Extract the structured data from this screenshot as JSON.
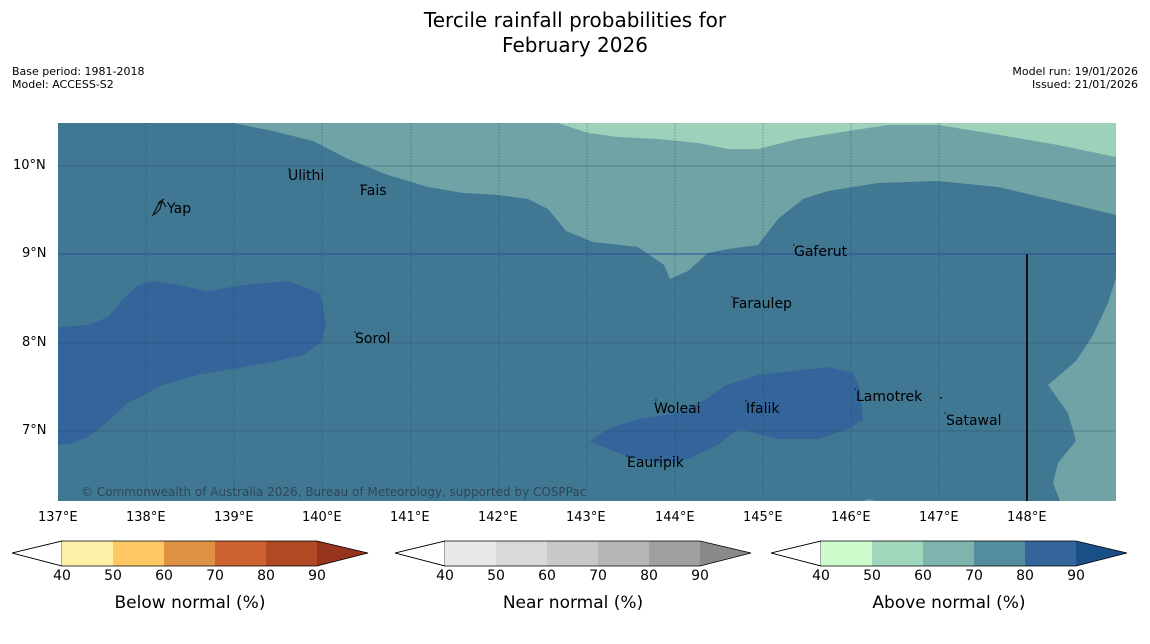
{
  "header": {
    "title_line1": "Tercile rainfall probabilities for",
    "title_line2": "February 2026",
    "base_period": "Base period: 1981-2018",
    "model": "Model: ACCESS-S2",
    "model_run": "Model run: 19/01/2026",
    "issued": "Issued: 21/01/2026"
  },
  "map": {
    "lat_labels": [
      "10°N",
      "9°N",
      "8°N",
      "7°N"
    ],
    "lon_labels": [
      "137°E",
      "138°E",
      "139°E",
      "140°E",
      "141°E",
      "142°E",
      "143°E",
      "144°E",
      "145°E",
      "146°E",
      "147°E",
      "148°E"
    ],
    "places": [
      "Ulithi",
      "Fais",
      "Yap",
      "Gaferut",
      "Faraulep",
      "Sorol",
      "Lamotrek",
      "Woleai",
      "Ifalik",
      "Satawal",
      "Eauripik"
    ],
    "copyright": "© Commonwealth of Australia 2026, Bureau of Meteorology, supported by COSPPac",
    "colors": {
      "above_60_70": "#6fa3a6",
      "above_70_80": "#407893",
      "above_80_90": "#33659b",
      "above_50_60": "#9dd1ba"
    }
  },
  "colorbars": {
    "ticks": [
      "40",
      "50",
      "60",
      "70",
      "80",
      "90"
    ],
    "below": {
      "label": "Below normal (%)",
      "colors": [
        "#fff0a8",
        "#fec965",
        "#e09244",
        "#cd6231",
        "#b04a24",
        "#96341e"
      ]
    },
    "near": {
      "label": "Near normal (%)",
      "colors": [
        "#e8e8e8",
        "#d9d9d9",
        "#c8c8c8",
        "#b6b6b6",
        "#a0a0a0",
        "#8a8a8a"
      ]
    },
    "above": {
      "label": "Above normal (%)",
      "colors": [
        "#ccfccc",
        "#a1d7bc",
        "#7fb4ae",
        "#548e9e",
        "#33659b",
        "#1a4e87"
      ]
    }
  }
}
